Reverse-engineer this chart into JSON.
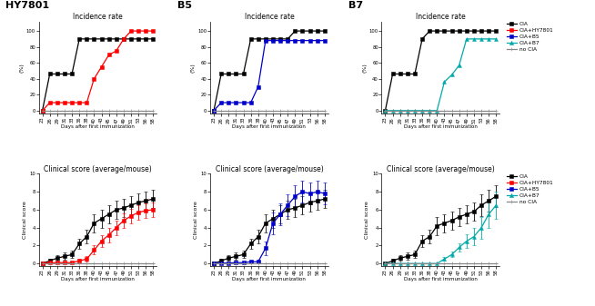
{
  "days": [
    23,
    26,
    29,
    31,
    33,
    36,
    38,
    40,
    43,
    45,
    47,
    49,
    51,
    53,
    56,
    58
  ],
  "tick_labels": [
    "23",
    "26",
    "29",
    "31",
    "33",
    "36",
    "38",
    "40",
    "43",
    "45",
    "47",
    "49",
    "51",
    "53",
    "56",
    "58"
  ],
  "panel_titles": [
    "HY7801",
    "B5",
    "B7"
  ],
  "incidence_title": "Incidence rate",
  "clinical_title": "Clinical score (average/mouse)",
  "xlabel": "Days after first immunization",
  "ylabel_incidence": "(%)",
  "ylabel_clinical": "Clinical score",
  "legend_labels": [
    "CIA",
    "CIA+HY7801",
    "CIA+B5",
    "CIA+B7",
    "no CIA"
  ],
  "color_CIA": "#000000",
  "color_HY7801": "#ff0000",
  "color_B5": "#0000cc",
  "color_B7": "#00aaaa",
  "color_noCIA": "#888888",
  "hy7801_incidence_CIA": [
    0,
    46,
    46,
    46,
    46,
    90,
    90,
    90,
    90,
    90,
    90,
    90,
    90,
    90,
    90,
    90
  ],
  "hy7801_incidence_CIABY": [
    0,
    10,
    10,
    10,
    10,
    10,
    10,
    40,
    55,
    70,
    75,
    90,
    100,
    100,
    100,
    100
  ],
  "hy7801_incidence_noCIA": [
    0,
    0,
    0,
    0,
    0,
    0,
    0,
    0,
    0,
    0,
    0,
    0,
    0,
    0,
    0,
    0
  ],
  "b5_incidence_CIA": [
    0,
    46,
    46,
    46,
    46,
    90,
    90,
    90,
    90,
    90,
    90,
    100,
    100,
    100,
    100,
    100
  ],
  "b5_incidence_CIAB5": [
    0,
    10,
    10,
    10,
    10,
    10,
    30,
    88,
    88,
    88,
    88,
    88,
    88,
    88,
    88,
    88
  ],
  "b5_incidence_noCIA": [
    0,
    0,
    0,
    0,
    0,
    0,
    0,
    0,
    0,
    0,
    0,
    0,
    0,
    0,
    0,
    0
  ],
  "b7_incidence_CIA": [
    0,
    46,
    46,
    46,
    46,
    90,
    100,
    100,
    100,
    100,
    100,
    100,
    100,
    100,
    100,
    100
  ],
  "b7_incidence_CIAB7": [
    0,
    0,
    0,
    0,
    0,
    0,
    0,
    0,
    36,
    45,
    57,
    90,
    90,
    90,
    90,
    90
  ],
  "b7_incidence_noCIA": [
    0,
    0,
    0,
    0,
    0,
    0,
    0,
    0,
    0,
    0,
    0,
    0,
    0,
    0,
    0,
    0
  ],
  "hy7801_clinical_CIA": [
    0,
    0.3,
    0.6,
    0.8,
    1.0,
    2.2,
    3.0,
    4.5,
    5.0,
    5.5,
    6.0,
    6.2,
    6.5,
    6.8,
    7.0,
    7.2
  ],
  "hy7801_clinical_CIA_err": [
    0,
    0.2,
    0.3,
    0.4,
    0.4,
    0.6,
    0.8,
    1.0,
    1.0,
    1.0,
    1.0,
    1.0,
    1.0,
    1.0,
    1.0,
    1.0
  ],
  "hy7801_clinical_CIABY": [
    0,
    0.1,
    0.1,
    0.1,
    0.1,
    0.3,
    0.5,
    1.5,
    2.5,
    3.2,
    4.0,
    4.8,
    5.3,
    5.7,
    5.9,
    6.0
  ],
  "hy7801_clinical_CIABY_err": [
    0,
    0.05,
    0.05,
    0.05,
    0.1,
    0.2,
    0.3,
    0.5,
    0.7,
    0.8,
    0.8,
    0.8,
    0.8,
    0.8,
    0.8,
    0.8
  ],
  "hy7801_clinical_noCIA": [
    0,
    0,
    0,
    0,
    0,
    0,
    0,
    0,
    0,
    0,
    0,
    0,
    0,
    0,
    0,
    0
  ],
  "hy7801_clinical_noCIA_err": [
    0,
    0,
    0,
    0,
    0,
    0,
    0,
    0,
    0,
    0,
    0,
    0,
    0,
    0,
    0,
    0
  ],
  "b5_clinical_CIA": [
    0,
    0.3,
    0.6,
    0.8,
    1.0,
    2.2,
    3.0,
    4.5,
    5.0,
    5.5,
    6.0,
    6.2,
    6.5,
    6.8,
    7.0,
    7.2
  ],
  "b5_clinical_CIA_err": [
    0,
    0.2,
    0.3,
    0.4,
    0.4,
    0.6,
    0.8,
    1.0,
    1.0,
    1.0,
    1.0,
    1.0,
    1.0,
    1.0,
    1.0,
    1.0
  ],
  "b5_clinical_CIAB5": [
    0,
    0.05,
    0.05,
    0.1,
    0.1,
    0.2,
    0.2,
    1.7,
    4.5,
    5.5,
    6.5,
    7.5,
    8.0,
    7.8,
    8.0,
    7.8
  ],
  "b5_clinical_CIAB5_err": [
    0,
    0.02,
    0.02,
    0.05,
    0.05,
    0.1,
    0.1,
    0.8,
    1.2,
    1.2,
    1.2,
    1.2,
    1.2,
    1.2,
    1.2,
    1.2
  ],
  "b5_clinical_noCIA": [
    0,
    0,
    0,
    0,
    0,
    0,
    0,
    0,
    0,
    0,
    0,
    0,
    0,
    0,
    0,
    0
  ],
  "b5_clinical_noCIA_err": [
    0,
    0,
    0,
    0,
    0,
    0,
    0,
    0,
    0,
    0,
    0,
    0,
    0,
    0,
    0,
    0
  ],
  "b7_clinical_CIA": [
    0,
    0.3,
    0.6,
    0.8,
    1.0,
    2.5,
    3.0,
    4.2,
    4.5,
    4.8,
    5.2,
    5.5,
    5.8,
    6.5,
    7.0,
    7.5
  ],
  "b7_clinical_CIA_err": [
    0,
    0.2,
    0.3,
    0.4,
    0.4,
    0.7,
    0.8,
    1.0,
    1.0,
    1.0,
    1.0,
    1.0,
    1.0,
    1.2,
    1.2,
    1.2
  ],
  "b7_clinical_CIAB7": [
    0,
    0,
    0,
    0,
    0,
    0,
    0,
    0,
    0.5,
    1.0,
    1.8,
    2.5,
    3.0,
    4.0,
    5.5,
    6.5
  ],
  "b7_clinical_CIAB7_err": [
    0,
    0,
    0,
    0,
    0,
    0,
    0,
    0,
    0.2,
    0.3,
    0.5,
    0.8,
    1.0,
    1.2,
    1.5,
    1.5
  ],
  "b7_clinical_noCIA": [
    0,
    0,
    0,
    0,
    0,
    0,
    0,
    0,
    0,
    0,
    0,
    0,
    0,
    0,
    0,
    0
  ],
  "b7_clinical_noCIA_err": [
    0,
    0,
    0,
    0,
    0,
    0,
    0,
    0,
    0,
    0,
    0,
    0,
    0,
    0,
    0,
    0
  ]
}
